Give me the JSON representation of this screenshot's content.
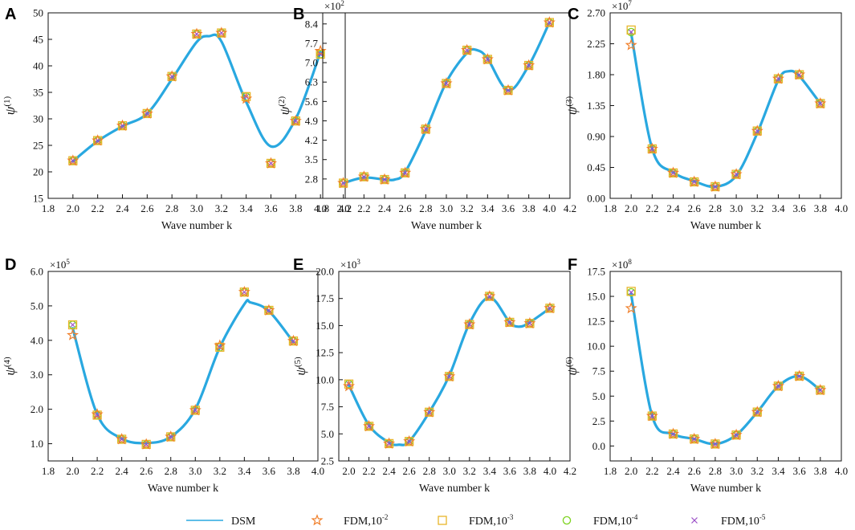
{
  "colors": {
    "dsm": "#29a8e0",
    "fdm2": "#f07f2a",
    "fdm3": "#e8b52a",
    "fdm4": "#7ed321",
    "fdm5": "#9b4fc7",
    "axis": "#111111"
  },
  "legend": [
    {
      "key": "dsm",
      "label": "DSM",
      "marker": "line"
    },
    {
      "key": "fdm2",
      "label": "FDM,10",
      "exp": "-2",
      "marker": "star"
    },
    {
      "key": "fdm3",
      "label": "FDM,10",
      "exp": "-3",
      "marker": "square"
    },
    {
      "key": "fdm4",
      "label": "FDM,10",
      "exp": "-4",
      "marker": "circle"
    },
    {
      "key": "fdm5",
      "label": "FDM,10",
      "exp": "-5",
      "marker": "cross"
    }
  ],
  "chart_data": [
    {
      "type": "line",
      "letter": "A",
      "xlabel": "Wave number k",
      "ylabel_base": "ψ",
      "ylabel_sup": "(1)",
      "scale_base": "",
      "scale_exp": "",
      "xlim": [
        1.8,
        4.2
      ],
      "xticks": [
        1.8,
        2.0,
        2.2,
        2.4,
        2.6,
        2.8,
        3.0,
        3.2,
        3.4,
        3.6,
        3.8,
        4.0,
        4.2
      ],
      "xtick_labels": [
        "1.8",
        "2.0",
        "2.2",
        "2.4",
        "2.6",
        "2.8",
        "3.0",
        "3.2",
        "3.4",
        "3.6",
        "3.8",
        "4.0",
        "4.2"
      ],
      "ylim": [
        15,
        50
      ],
      "yticks": [
        15,
        20,
        25,
        30,
        35,
        40,
        45,
        50
      ],
      "ytick_labels": [
        "15",
        "20",
        "25",
        "30",
        "35",
        "40",
        "45",
        "50"
      ],
      "dsm": {
        "x": [
          2.0,
          2.2,
          2.4,
          2.6,
          2.8,
          3.0,
          3.1,
          3.2,
          3.4,
          3.6,
          3.8,
          4.0
        ],
        "y": [
          22.0,
          25.8,
          28.6,
          31.0,
          37.5,
          44.5,
          45.6,
          44.6,
          33.2,
          24.8,
          30.0,
          42.6
        ]
      },
      "fdm_x": [
        2.0,
        2.2,
        2.4,
        2.6,
        2.8,
        3.0,
        3.2,
        3.4,
        3.6,
        3.8,
        4.0
      ],
      "fdm": {
        "fdm2": [
          22.1,
          25.9,
          28.7,
          31.0,
          38.0,
          46.0,
          46.2,
          33.8,
          21.6,
          29.6,
          42.8
        ],
        "fdm3": [
          22.1,
          25.9,
          28.7,
          31.0,
          38.0,
          46.0,
          46.2,
          34.2,
          21.6,
          29.6,
          42.2
        ],
        "fdm4": [
          22.1,
          25.9,
          28.7,
          31.0,
          38.0,
          46.0,
          46.2,
          34.2,
          21.6,
          29.6,
          42.2
        ],
        "fdm5": [
          22.1,
          25.9,
          28.7,
          31.0,
          38.0,
          46.0,
          46.2,
          34.2,
          21.6,
          29.6,
          42.2
        ]
      }
    },
    {
      "type": "line",
      "letter": "B",
      "xlabel": "Wave number k",
      "ylabel_base": "ψ",
      "ylabel_sup": "(2)",
      "scale_base": "×10",
      "scale_exp": "2",
      "xlim": [
        1.8,
        4.2
      ],
      "xticks": [
        1.8,
        2.0,
        2.2,
        2.4,
        2.6,
        2.8,
        3.0,
        3.2,
        3.4,
        3.6,
        3.8,
        4.0,
        4.2
      ],
      "xtick_labels": [
        "1.8",
        "2.0",
        "2.2",
        "2.4",
        "2.6",
        "2.8",
        "3.0",
        "3.2",
        "3.4",
        "3.6",
        "3.8",
        "4.0",
        "4.2"
      ],
      "ylim": [
        2.1,
        8.8
      ],
      "yticks": [
        2.8,
        3.5,
        4.2,
        4.9,
        5.6,
        6.3,
        7.0,
        7.7,
        8.4
      ],
      "ytick_labels": [
        "2.8",
        "3.5",
        "4.2",
        "4.9",
        "5.6",
        "6.3",
        "7.0",
        "7.7",
        "8.4"
      ],
      "dsm": {
        "x": [
          2.0,
          2.2,
          2.4,
          2.5,
          2.6,
          2.8,
          3.0,
          3.2,
          3.3,
          3.4,
          3.6,
          3.8,
          4.0
        ],
        "y": [
          2.65,
          2.85,
          2.78,
          2.78,
          3.05,
          4.55,
          6.3,
          7.35,
          7.45,
          7.15,
          6.0,
          6.9,
          8.45
        ]
      },
      "fdm_x": [
        2.0,
        2.2,
        2.4,
        2.6,
        2.8,
        3.0,
        3.2,
        3.4,
        3.6,
        3.8,
        4.0
      ],
      "fdm": {
        "fdm2": [
          2.65,
          2.88,
          2.78,
          3.02,
          4.6,
          6.25,
          7.45,
          7.12,
          6.0,
          6.9,
          8.45
        ],
        "fdm3": [
          2.65,
          2.88,
          2.78,
          3.02,
          4.6,
          6.25,
          7.45,
          7.12,
          6.0,
          6.9,
          8.45
        ],
        "fdm4": [
          2.65,
          2.88,
          2.78,
          3.02,
          4.6,
          6.25,
          7.45,
          7.12,
          6.0,
          6.9,
          8.45
        ],
        "fdm5": [
          2.65,
          2.88,
          2.78,
          3.02,
          4.6,
          6.25,
          7.45,
          7.12,
          6.0,
          6.9,
          8.45
        ]
      }
    },
    {
      "type": "line",
      "letter": "C",
      "xlabel": "Wave number k",
      "ylabel_base": "ψ",
      "ylabel_sup": "(3)",
      "scale_base": "×10",
      "scale_exp": "7",
      "xlim": [
        1.8,
        4.0
      ],
      "xticks": [
        1.8,
        2.0,
        2.2,
        2.4,
        2.6,
        2.8,
        3.0,
        3.2,
        3.4,
        3.6,
        3.8,
        4.0
      ],
      "xtick_labels": [
        "1.8",
        "2.0",
        "2.2",
        "2.4",
        "2.6",
        "2.8",
        "3.0",
        "3.2",
        "3.4",
        "3.6",
        "3.8",
        "4.0"
      ],
      "ylim": [
        0,
        2.7
      ],
      "yticks": [
        0,
        0.45,
        0.9,
        1.35,
        1.8,
        2.25,
        2.7
      ],
      "ytick_labels": [
        "0.00",
        "0.45",
        "0.90",
        "1.35",
        "1.80",
        "2.25",
        "2.70"
      ],
      "dsm": {
        "x": [
          2.0,
          2.2,
          2.4,
          2.6,
          2.8,
          3.0,
          3.2,
          3.4,
          3.5,
          3.6,
          3.8
        ],
        "y": [
          2.4,
          0.72,
          0.38,
          0.25,
          0.17,
          0.33,
          0.95,
          1.72,
          1.85,
          1.78,
          1.38
        ]
      },
      "fdm_x": [
        2.0,
        2.2,
        2.4,
        2.6,
        2.8,
        3.0,
        3.2,
        3.4,
        3.6,
        3.8
      ],
      "fdm": {
        "fdm2": [
          2.23,
          0.72,
          0.37,
          0.24,
          0.17,
          0.35,
          0.98,
          1.74,
          1.8,
          1.38
        ],
        "fdm3": [
          2.45,
          0.72,
          0.37,
          0.24,
          0.17,
          0.35,
          0.98,
          1.74,
          1.8,
          1.38
        ],
        "fdm4": [
          2.42,
          0.72,
          0.37,
          0.24,
          0.17,
          0.35,
          0.98,
          1.74,
          1.8,
          1.38
        ],
        "fdm5": [
          2.42,
          0.72,
          0.37,
          0.24,
          0.17,
          0.35,
          0.98,
          1.74,
          1.8,
          1.38
        ]
      }
    },
    {
      "type": "line",
      "letter": "D",
      "xlabel": "Wave number k",
      "ylabel_base": "ψ",
      "ylabel_sup": "(4)",
      "scale_base": "×10",
      "scale_exp": "5",
      "xlim": [
        1.8,
        4.0
      ],
      "xticks": [
        1.8,
        2.0,
        2.2,
        2.4,
        2.6,
        2.8,
        3.0,
        3.2,
        3.4,
        3.6,
        3.8,
        4.0
      ],
      "xtick_labels": [
        "1.8",
        "2.0",
        "2.2",
        "2.4",
        "2.6",
        "2.8",
        "3.0",
        "3.2",
        "3.4",
        "3.6",
        "3.8",
        "4.0"
      ],
      "ylim": [
        0.5,
        6.0
      ],
      "yticks": [
        1,
        2,
        3,
        4,
        5,
        6
      ],
      "ytick_labels": [
        "1.0",
        "2.0",
        "3.0",
        "4.0",
        "5.0",
        "6.0"
      ],
      "dsm": {
        "x": [
          2.0,
          2.2,
          2.4,
          2.6,
          2.8,
          3.0,
          3.2,
          3.4,
          3.45,
          3.6,
          3.8
        ],
        "y": [
          4.35,
          1.85,
          1.15,
          1.02,
          1.2,
          2.0,
          3.8,
          5.05,
          5.1,
          4.85,
          3.95
        ]
      },
      "fdm_x": [
        2.0,
        2.2,
        2.4,
        2.6,
        2.8,
        3.0,
        3.2,
        3.4,
        3.6,
        3.8
      ],
      "fdm": {
        "fdm2": [
          4.15,
          1.85,
          1.13,
          0.98,
          1.2,
          1.97,
          3.85,
          5.4,
          4.87,
          3.98
        ],
        "fdm3": [
          4.45,
          1.83,
          1.13,
          0.98,
          1.2,
          1.97,
          3.8,
          5.4,
          4.87,
          3.98
        ],
        "fdm4": [
          4.45,
          1.83,
          1.13,
          0.98,
          1.2,
          1.97,
          3.8,
          5.4,
          4.87,
          3.98
        ],
        "fdm5": [
          4.45,
          1.83,
          1.13,
          0.98,
          1.2,
          1.97,
          3.8,
          5.4,
          4.87,
          3.98
        ]
      }
    },
    {
      "type": "line",
      "letter": "E",
      "xlabel": "Wave number k",
      "ylabel_base": "ψ",
      "ylabel_sup": "(5)",
      "scale_base": "×10",
      "scale_exp": "3",
      "xlim": [
        1.9,
        4.2
      ],
      "xticks": [
        2.0,
        2.2,
        2.4,
        2.6,
        2.8,
        3.0,
        3.2,
        3.4,
        3.6,
        3.8,
        4.0,
        4.2
      ],
      "xtick_labels": [
        "2.0",
        "2.2",
        "2.4",
        "2.6",
        "2.8",
        "3.0",
        "3.2",
        "3.4",
        "3.6",
        "3.8",
        "4.0",
        "4.2"
      ],
      "ylim": [
        2.5,
        20.0
      ],
      "yticks": [
        2.5,
        5,
        7.5,
        10,
        12.5,
        15,
        17.5,
        20
      ],
      "ytick_labels": [
        "2.5",
        "5.0",
        "7.5",
        "10.0",
        "12.5",
        "15.0",
        "17.5",
        "20.0"
      ],
      "dsm": {
        "x": [
          2.0,
          2.2,
          2.4,
          2.5,
          2.6,
          2.8,
          3.0,
          3.2,
          3.4,
          3.6,
          3.7,
          3.8,
          4.0
        ],
        "y": [
          9.5,
          5.8,
          4.2,
          4.0,
          4.3,
          7.0,
          10.4,
          15.2,
          17.6,
          15.3,
          14.9,
          15.3,
          16.6
        ]
      },
      "fdm_x": [
        2.0,
        2.2,
        2.4,
        2.6,
        2.8,
        3.0,
        3.2,
        3.4,
        3.6,
        3.8,
        4.0
      ],
      "fdm": {
        "fdm2": [
          9.4,
          5.7,
          4.1,
          4.3,
          7.0,
          10.3,
          15.1,
          17.7,
          15.3,
          15.2,
          16.6
        ],
        "fdm3": [
          9.6,
          5.7,
          4.1,
          4.3,
          7.0,
          10.3,
          15.1,
          17.7,
          15.3,
          15.2,
          16.6
        ],
        "fdm4": [
          9.6,
          5.7,
          4.1,
          4.3,
          7.0,
          10.3,
          15.1,
          17.7,
          15.3,
          15.2,
          16.6
        ],
        "fdm5": [
          9.6,
          5.7,
          4.1,
          4.3,
          7.0,
          10.3,
          15.1,
          17.7,
          15.3,
          15.2,
          16.6
        ]
      }
    },
    {
      "type": "line",
      "letter": "F",
      "xlabel": "Wave number k",
      "ylabel_base": "ψ",
      "ylabel_sup": "(6)",
      "scale_base": "×10",
      "scale_exp": "8",
      "xlim": [
        1.8,
        4.0
      ],
      "xticks": [
        1.8,
        2.0,
        2.2,
        2.4,
        2.6,
        2.8,
        3.0,
        3.2,
        3.4,
        3.6,
        3.8,
        4.0
      ],
      "xtick_labels": [
        "1.8",
        "2.0",
        "2.2",
        "2.4",
        "2.6",
        "2.8",
        "3.0",
        "3.2",
        "3.4",
        "3.6",
        "3.8",
        "4.0"
      ],
      "ylim": [
        -1.5,
        17.5
      ],
      "yticks": [
        0,
        2.5,
        5,
        7.5,
        10,
        12.5,
        15,
        17.5
      ],
      "ytick_labels": [
        "0.0",
        "2.5",
        "5.0",
        "7.5",
        "10.0",
        "12.5",
        "15.0",
        "17.5"
      ],
      "dsm": {
        "x": [
          2.0,
          2.2,
          2.4,
          2.6,
          2.8,
          3.0,
          3.2,
          3.4,
          3.6,
          3.8
        ],
        "y": [
          15.2,
          3.0,
          1.2,
          0.7,
          0.2,
          1.1,
          3.4,
          6.0,
          7.0,
          5.6
        ]
      },
      "fdm_x": [
        2.0,
        2.2,
        2.4,
        2.6,
        2.8,
        3.0,
        3.2,
        3.4,
        3.6,
        3.8
      ],
      "fdm": {
        "fdm2": [
          13.8,
          3.0,
          1.2,
          0.7,
          0.2,
          1.1,
          3.4,
          6.0,
          7.0,
          5.6
        ],
        "fdm3": [
          15.5,
          3.0,
          1.2,
          0.7,
          0.2,
          1.1,
          3.4,
          6.0,
          7.0,
          5.6
        ],
        "fdm4": [
          15.4,
          3.0,
          1.2,
          0.7,
          0.2,
          1.1,
          3.4,
          6.0,
          7.0,
          5.6
        ],
        "fdm5": [
          15.4,
          3.0,
          1.2,
          0.7,
          0.2,
          1.1,
          3.4,
          6.0,
          7.0,
          5.6
        ]
      }
    }
  ]
}
